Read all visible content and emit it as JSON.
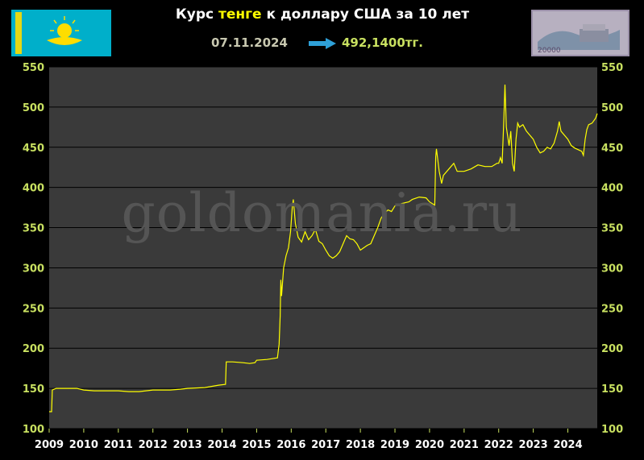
{
  "header": {
    "title_prefix": "Курс ",
    "title_highlight": "тенге",
    "title_suffix": " к доллару США за 10 лет",
    "date": "07.11.2024",
    "value": "492,1400тг.",
    "banknote_denomination": "20000"
  },
  "watermark": "goldomania.ru",
  "colors": {
    "background": "#000000",
    "plot_background": "#3a3a3a",
    "line": "#ffff00",
    "axis_text": "#c8e060",
    "grid": "#000000",
    "flag_blue": "#00afca",
    "flag_gold": "#fedd00"
  },
  "chart_data": {
    "type": "line",
    "title": "Курс тенге к доллару США за 10 лет",
    "xlabel": "",
    "ylabel": "",
    "xlim": [
      2009,
      2024.85
    ],
    "ylim": [
      100,
      550
    ],
    "x_ticks": [
      "2009",
      "2010",
      "2011",
      "2012",
      "2013",
      "2014",
      "2015",
      "2016",
      "2017",
      "2018",
      "2019",
      "2020",
      "2021",
      "2022",
      "2023",
      "2024"
    ],
    "y_ticks": [
      100,
      150,
      200,
      250,
      300,
      350,
      400,
      450,
      500,
      550
    ],
    "grid": "horizontal",
    "series": [
      {
        "points": [
          [
            2009.0,
            121
          ],
          [
            2009.07,
            121
          ],
          [
            2009.09,
            148
          ],
          [
            2009.2,
            150
          ],
          [
            2009.5,
            150
          ],
          [
            2009.8,
            150
          ],
          [
            2010.0,
            148
          ],
          [
            2010.3,
            147
          ],
          [
            2010.6,
            147
          ],
          [
            2011.0,
            147
          ],
          [
            2011.3,
            146
          ],
          [
            2011.6,
            146
          ],
          [
            2012.0,
            148
          ],
          [
            2012.5,
            148
          ],
          [
            2012.8,
            149
          ],
          [
            2013.0,
            150
          ],
          [
            2013.5,
            151
          ],
          [
            2013.9,
            154
          ],
          [
            2014.1,
            155
          ],
          [
            2014.12,
            183
          ],
          [
            2014.3,
            183
          ],
          [
            2014.6,
            182
          ],
          [
            2014.8,
            181
          ],
          [
            2014.95,
            182
          ],
          [
            2015.0,
            185
          ],
          [
            2015.3,
            186
          ],
          [
            2015.6,
            188
          ],
          [
            2015.65,
            205
          ],
          [
            2015.68,
            240
          ],
          [
            2015.7,
            285
          ],
          [
            2015.72,
            265
          ],
          [
            2015.78,
            300
          ],
          [
            2015.85,
            315
          ],
          [
            2015.92,
            325
          ],
          [
            2015.98,
            345
          ],
          [
            2016.03,
            375
          ],
          [
            2016.06,
            385
          ],
          [
            2016.12,
            355
          ],
          [
            2016.2,
            338
          ],
          [
            2016.3,
            332
          ],
          [
            2016.4,
            345
          ],
          [
            2016.5,
            335
          ],
          [
            2016.6,
            340
          ],
          [
            2016.7,
            348
          ],
          [
            2016.8,
            333
          ],
          [
            2016.9,
            330
          ],
          [
            2017.0,
            322
          ],
          [
            2017.1,
            315
          ],
          [
            2017.2,
            312
          ],
          [
            2017.3,
            315
          ],
          [
            2017.4,
            320
          ],
          [
            2017.5,
            330
          ],
          [
            2017.6,
            340
          ],
          [
            2017.7,
            336
          ],
          [
            2017.8,
            335
          ],
          [
            2017.9,
            330
          ],
          [
            2018.0,
            322
          ],
          [
            2018.1,
            325
          ],
          [
            2018.2,
            328
          ],
          [
            2018.3,
            330
          ],
          [
            2018.4,
            340
          ],
          [
            2018.5,
            350
          ],
          [
            2018.6,
            362
          ],
          [
            2018.7,
            368
          ],
          [
            2018.8,
            372
          ],
          [
            2018.9,
            370
          ],
          [
            2019.0,
            377
          ],
          [
            2019.2,
            380
          ],
          [
            2019.4,
            382
          ],
          [
            2019.5,
            385
          ],
          [
            2019.7,
            388
          ],
          [
            2019.9,
            387
          ],
          [
            2020.0,
            382
          ],
          [
            2020.15,
            378
          ],
          [
            2020.18,
            438
          ],
          [
            2020.2,
            448
          ],
          [
            2020.28,
            420
          ],
          [
            2020.35,
            405
          ],
          [
            2020.4,
            415
          ],
          [
            2020.5,
            420
          ],
          [
            2020.6,
            425
          ],
          [
            2020.7,
            430
          ],
          [
            2020.8,
            420
          ],
          [
            2021.0,
            420
          ],
          [
            2021.2,
            423
          ],
          [
            2021.4,
            428
          ],
          [
            2021.6,
            426
          ],
          [
            2021.8,
            426
          ],
          [
            2021.95,
            430
          ],
          [
            2022.0,
            430
          ],
          [
            2022.05,
            437
          ],
          [
            2022.1,
            430
          ],
          [
            2022.15,
            487
          ],
          [
            2022.18,
            528
          ],
          [
            2022.22,
            475
          ],
          [
            2022.3,
            452
          ],
          [
            2022.35,
            470
          ],
          [
            2022.4,
            430
          ],
          [
            2022.45,
            420
          ],
          [
            2022.5,
            460
          ],
          [
            2022.55,
            480
          ],
          [
            2022.6,
            475
          ],
          [
            2022.7,
            478
          ],
          [
            2022.8,
            470
          ],
          [
            2022.9,
            465
          ],
          [
            2023.0,
            460
          ],
          [
            2023.1,
            450
          ],
          [
            2023.2,
            443
          ],
          [
            2023.3,
            445
          ],
          [
            2023.4,
            450
          ],
          [
            2023.5,
            448
          ],
          [
            2023.6,
            455
          ],
          [
            2023.7,
            470
          ],
          [
            2023.75,
            482
          ],
          [
            2023.8,
            470
          ],
          [
            2023.9,
            465
          ],
          [
            2024.0,
            460
          ],
          [
            2024.1,
            452
          ],
          [
            2024.2,
            449
          ],
          [
            2024.3,
            447
          ],
          [
            2024.4,
            445
          ],
          [
            2024.45,
            440
          ],
          [
            2024.5,
            460
          ],
          [
            2024.55,
            472
          ],
          [
            2024.6,
            478
          ],
          [
            2024.7,
            480
          ],
          [
            2024.8,
            486
          ],
          [
            2024.85,
            492
          ]
        ]
      }
    ]
  }
}
